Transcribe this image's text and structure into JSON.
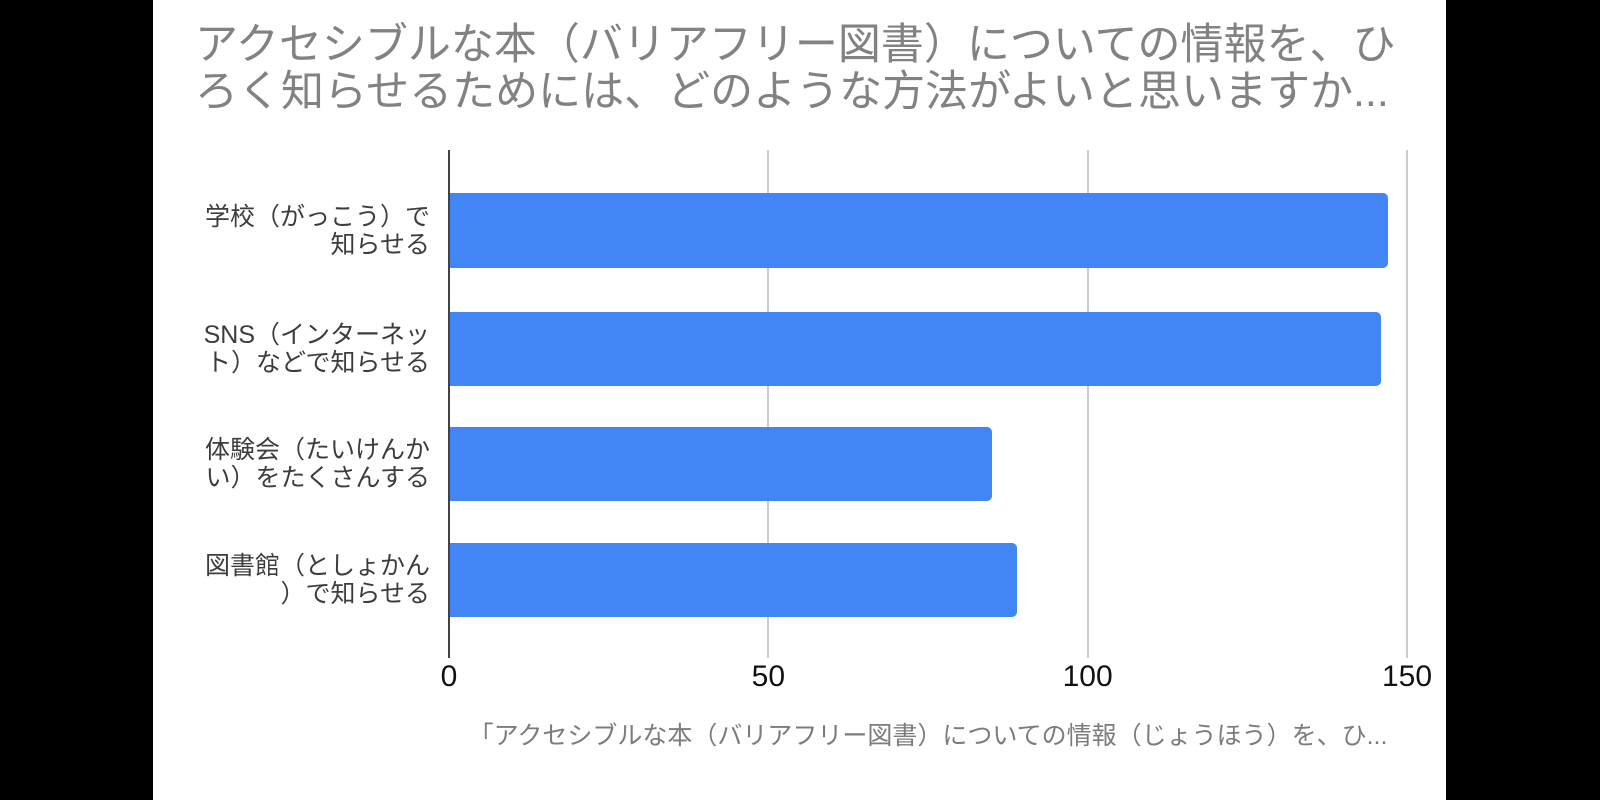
{
  "chart_data": {
    "type": "bar",
    "orientation": "horizontal",
    "title": "アクセシブルな本（バリアフリー図書）についての情報を、ひろく知らせるためには、どのような方法がよいと思いますか...",
    "title_lines": [
      "アクセシブルな本（バリアフリー図書）についての情報を、ひ",
      "ろく知らせるためには、どのような方法がよいと思いますか..."
    ],
    "categories": [
      "学校（がっこう）で知らせる",
      "SNS（インターネット）などで知らせる",
      "体験会（たいけんかい）をたくさんする",
      "図書館（としょかん）で知らせる"
    ],
    "category_label_lines": [
      [
        "学校（がっこう）で",
        "知らせる"
      ],
      [
        "SNS（インターネッ",
        "ト）などで知らせる"
      ],
      [
        "体験会（たいけんか",
        "い）をたくさんする"
      ],
      [
        "図書館（としょかん",
        "）で知らせる"
      ]
    ],
    "values": [
      147,
      146,
      85,
      89
    ],
    "xlim": [
      0,
      150
    ],
    "xticks": [
      0,
      50,
      100,
      150
    ],
    "xlabel": "「アクセシブルな本（バリアフリー図書）についての情報（じょうほう）を、ひ...",
    "ylabel": "",
    "legend": "none",
    "grid": true,
    "colors": {
      "bar": "#4285f4",
      "title_text": "#828282",
      "category_text": "#3d3d3d",
      "tick_text": "#111111",
      "caption_text": "#7c7c7c",
      "gridline": "#cccccc",
      "axis_line": "#424242",
      "panel_background": "#ffffff",
      "letterbox": "#000000"
    }
  }
}
